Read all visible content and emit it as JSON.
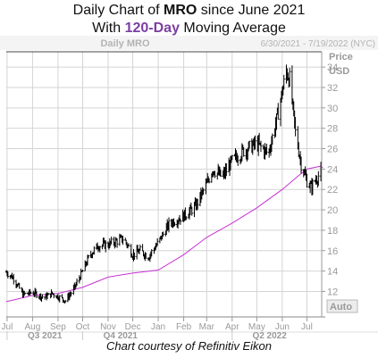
{
  "title": {
    "pre": "Daily Chart of ",
    "ticker": "MRO",
    "mid": " since June 2021",
    "line2_pre": "With ",
    "ma_label": "120-Day",
    "line2_post": " Moving Average"
  },
  "header": {
    "symbol": "Daily MRO",
    "date_range": "6/30/2021 - 7/19/2022 (NYC)"
  },
  "axis": {
    "price_label": "Price",
    "unit_label": "USD",
    "auto_label": "Auto"
  },
  "credit": "Chart courtesy of Refinitiv Eikon",
  "colors": {
    "price": "#000000",
    "moving_average": "#c832d6",
    "grid": "#d4d4d4",
    "axis_text": "#9a9a9a"
  },
  "chart_data": {
    "type": "line",
    "title": "Daily Chart of MRO since June 2021",
    "subtitle": "With 120-Day Moving Average",
    "ylabel": "Price USD",
    "ylim": [
      9.5,
      35.5
    ],
    "yticks": [
      12,
      14,
      16,
      18,
      20,
      22,
      24,
      26,
      28,
      30,
      32,
      34
    ],
    "xlim": [
      "2021-06-30",
      "2022-07-19"
    ],
    "x_month_labels": [
      {
        "date": "2021-07-01",
        "label": "Jul"
      },
      {
        "date": "2021-08-01",
        "label": "Aug"
      },
      {
        "date": "2021-09-01",
        "label": "Sep"
      },
      {
        "date": "2021-10-01",
        "label": "Oct"
      },
      {
        "date": "2021-11-01",
        "label": "Nov"
      },
      {
        "date": "2021-12-01",
        "label": "Dec"
      },
      {
        "date": "2022-01-01",
        "label": "Jan"
      },
      {
        "date": "2022-02-01",
        "label": "Feb"
      },
      {
        "date": "2022-03-01",
        "label": "Mar"
      },
      {
        "date": "2022-04-01",
        "label": "Apr"
      },
      {
        "date": "2022-05-01",
        "label": "May"
      },
      {
        "date": "2022-06-01",
        "label": "Jun"
      },
      {
        "date": "2022-07-01",
        "label": "Jul"
      }
    ],
    "x_quarter_labels": [
      {
        "start": "2021-07-01",
        "end": "2021-10-01",
        "label": "Q3 2021"
      },
      {
        "start": "2021-10-01",
        "end": "2022-01-01",
        "label": "Q4 2021"
      },
      {
        "start": "2022-04-01",
        "end": "2022-07-01",
        "label": "Q2 2022"
      }
    ],
    "grid": true,
    "legend": "none",
    "series": [
      {
        "style": "daily price bars",
        "points": [
          {
            "date": "2021-06-30",
            "value": 13.9
          },
          {
            "date": "2021-07-09",
            "value": 13.3
          },
          {
            "date": "2021-07-20",
            "value": 11.7
          },
          {
            "date": "2021-08-01",
            "value": 11.9
          },
          {
            "date": "2021-08-15",
            "value": 11.4
          },
          {
            "date": "2021-08-25",
            "value": 11.8
          },
          {
            "date": "2021-09-01",
            "value": 11.5
          },
          {
            "date": "2021-09-10",
            "value": 11.1
          },
          {
            "date": "2021-09-20",
            "value": 12.2
          },
          {
            "date": "2021-10-01",
            "value": 14.0
          },
          {
            "date": "2021-10-10",
            "value": 15.6
          },
          {
            "date": "2021-10-20",
            "value": 16.5
          },
          {
            "date": "2021-11-01",
            "value": 16.6
          },
          {
            "date": "2021-11-10",
            "value": 16.9
          },
          {
            "date": "2021-11-20",
            "value": 17.2
          },
          {
            "date": "2021-12-01",
            "value": 15.6
          },
          {
            "date": "2021-12-10",
            "value": 16.0
          },
          {
            "date": "2021-12-20",
            "value": 15.4
          },
          {
            "date": "2022-01-01",
            "value": 16.8
          },
          {
            "date": "2022-01-15",
            "value": 18.7
          },
          {
            "date": "2022-02-01",
            "value": 19.4
          },
          {
            "date": "2022-02-15",
            "value": 20.3
          },
          {
            "date": "2022-03-01",
            "value": 22.5
          },
          {
            "date": "2022-03-08",
            "value": 24.0
          },
          {
            "date": "2022-03-20",
            "value": 23.2
          },
          {
            "date": "2022-04-01",
            "value": 24.8
          },
          {
            "date": "2022-04-15",
            "value": 25.8
          },
          {
            "date": "2022-05-01",
            "value": 26.5
          },
          {
            "date": "2022-05-15",
            "value": 25.5
          },
          {
            "date": "2022-05-25",
            "value": 28.8
          },
          {
            "date": "2022-06-06",
            "value": 33.6
          },
          {
            "date": "2022-06-10",
            "value": 32.8
          },
          {
            "date": "2022-06-17",
            "value": 27.6
          },
          {
            "date": "2022-06-24",
            "value": 24.5
          },
          {
            "date": "2022-07-01",
            "value": 22.8
          },
          {
            "date": "2022-07-06",
            "value": 22.2
          },
          {
            "date": "2022-07-12",
            "value": 23.0
          },
          {
            "date": "2022-07-19",
            "value": 23.8
          }
        ]
      },
      {
        "name": "120-Day",
        "style": "moving average line",
        "points": [
          {
            "date": "2021-06-30",
            "value": 11.0
          },
          {
            "date": "2021-08-01",
            "value": 11.6
          },
          {
            "date": "2021-09-01",
            "value": 11.8
          },
          {
            "date": "2021-10-01",
            "value": 12.4
          },
          {
            "date": "2021-11-01",
            "value": 13.4
          },
          {
            "date": "2021-12-01",
            "value": 13.8
          },
          {
            "date": "2022-01-01",
            "value": 14.1
          },
          {
            "date": "2022-02-01",
            "value": 15.6
          },
          {
            "date": "2022-03-01",
            "value": 17.3
          },
          {
            "date": "2022-04-01",
            "value": 18.7
          },
          {
            "date": "2022-05-01",
            "value": 20.2
          },
          {
            "date": "2022-06-01",
            "value": 22.0
          },
          {
            "date": "2022-06-20",
            "value": 23.3
          },
          {
            "date": "2022-07-01",
            "value": 24.0
          },
          {
            "date": "2022-07-19",
            "value": 24.3
          }
        ]
      }
    ]
  }
}
